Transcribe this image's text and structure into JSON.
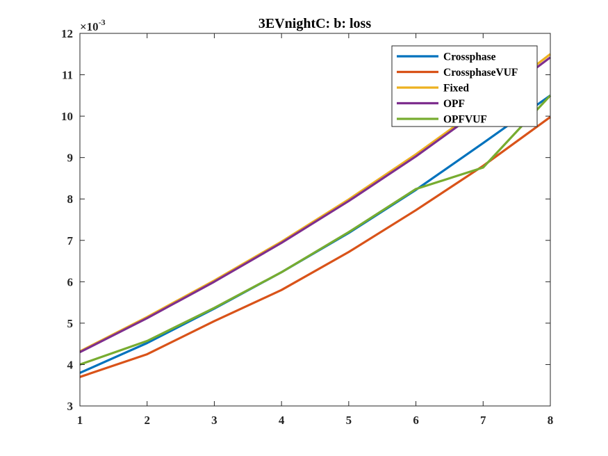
{
  "chart_data": {
    "type": "line",
    "title": "3EVnightC: b: loss",
    "xlabel": "",
    "ylabel": "",
    "y_exponent_base": "×10",
    "y_exponent_power": "-3",
    "xlim": [
      1,
      8
    ],
    "ylim": [
      3,
      12
    ],
    "xticks": [
      "1",
      "2",
      "3",
      "4",
      "5",
      "6",
      "7",
      "8"
    ],
    "yticks": [
      "3",
      "4",
      "5",
      "6",
      "7",
      "8",
      "9",
      "10",
      "11",
      "12"
    ],
    "grid": false,
    "legend_position": "top-right",
    "x": [
      1,
      2,
      3,
      4,
      5,
      6,
      7,
      8
    ],
    "series": [
      {
        "name": "Crossphase",
        "color": "#0072BD",
        "values": [
          3.8,
          4.52,
          5.35,
          6.23,
          7.18,
          8.22,
          9.35,
          10.5
        ]
      },
      {
        "name": "CrossphaseVUF",
        "color": "#D95319",
        "values": [
          3.7,
          4.25,
          5.05,
          5.8,
          6.72,
          7.73,
          8.8,
          9.98
        ]
      },
      {
        "name": "Fixed",
        "color": "#EDB120",
        "values": [
          4.32,
          5.15,
          6.03,
          6.97,
          7.99,
          9.08,
          10.25,
          11.5
        ]
      },
      {
        "name": "OPF",
        "color": "#7E2F8E",
        "values": [
          4.3,
          5.12,
          6.0,
          6.94,
          7.95,
          9.03,
          10.2,
          11.42
        ]
      },
      {
        "name": "OPFVUF",
        "color": "#77AC30",
        "values": [
          4.0,
          4.57,
          5.37,
          6.23,
          7.2,
          8.24,
          8.76,
          10.5
        ]
      }
    ]
  }
}
